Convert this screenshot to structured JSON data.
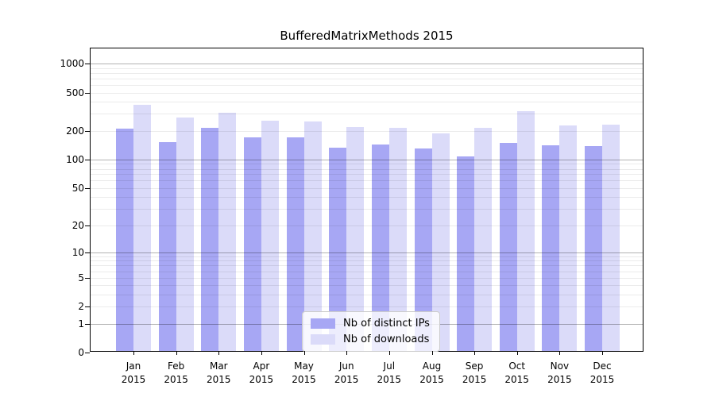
{
  "chart_data": {
    "type": "bar",
    "title": "BufferedMatrixMethods 2015",
    "categories": [
      "Jan 2015",
      "Feb 2015",
      "Mar 2015",
      "Apr 2015",
      "May 2015",
      "Jun 2015",
      "Jul 2015",
      "Aug 2015",
      "Sep 2015",
      "Oct 2015",
      "Nov 2015",
      "Dec 2015"
    ],
    "month_labels": [
      "Jan",
      "Feb",
      "Mar",
      "Apr",
      "May",
      "Jun",
      "Jul",
      "Aug",
      "Sep",
      "Oct",
      "Nov",
      "Dec"
    ],
    "year_label": "2015",
    "series": [
      {
        "name": "Nb of distinct IPs",
        "color": "#a7a7f4",
        "values": [
          202,
          147,
          206,
          164,
          163,
          128,
          138,
          126,
          104,
          144,
          136,
          133
        ]
      },
      {
        "name": "Nb of downloads",
        "color": "#dbdbf9",
        "values": [
          359,
          264,
          296,
          245,
          240,
          210,
          206,
          181,
          206,
          308,
          219,
          223
        ]
      }
    ],
    "yscale": "log1p",
    "y_ticks": [
      0,
      1,
      2,
      5,
      10,
      20,
      50,
      100,
      200,
      500,
      1000
    ],
    "major_grid_values": [
      1,
      10,
      100,
      1000
    ],
    "ylim": [
      0,
      1450
    ],
    "grid": true,
    "legend_position": "lower center inside",
    "colors": {
      "major_grid": "#b3b3b3",
      "minor_grid": "#ebebeb",
      "spine": "#000000",
      "text": "#000000",
      "background": "#ffffff"
    }
  }
}
